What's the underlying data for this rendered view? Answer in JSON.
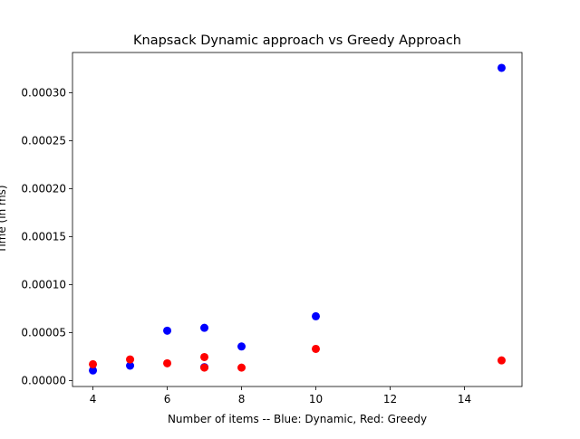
{
  "chart_data": {
    "type": "scatter",
    "title": "Knapsack Dynamic approach vs Greedy Approach",
    "xlabel": "Number of items -- Blue: Dynamic, Red: Greedy",
    "ylabel": "Time (in ms)",
    "xlim": [
      3.45,
      15.55
    ],
    "ylim": [
      -6.2e-06,
      0.000342
    ],
    "xticks": [
      4,
      6,
      8,
      10,
      12,
      14
    ],
    "yticks": [
      0.0,
      5e-05,
      0.0001,
      0.00015,
      0.0002,
      0.00025,
      0.0003
    ],
    "ytick_labels": [
      "0.00000",
      "0.00005",
      "0.00010",
      "0.00015",
      "0.00020",
      "0.00025",
      "0.00030"
    ],
    "grid": false,
    "series": [
      {
        "color": "#0000ff",
        "x": [
          4,
          5,
          6,
          7,
          7,
          8,
          10,
          15
        ],
        "y": [
          1.05e-05,
          1.55e-05,
          5.2e-05,
          5.5e-05,
          1.4e-05,
          3.55e-05,
          6.7e-05,
          0.000326
        ]
      },
      {
        "color": "#ff0000",
        "x": [
          4,
          5,
          6,
          7,
          7,
          8,
          10,
          15
        ],
        "y": [
          1.7e-05,
          2.2e-05,
          1.8e-05,
          2.45e-05,
          1.35e-05,
          1.35e-05,
          3.3e-05,
          2.1e-05
        ]
      }
    ]
  }
}
